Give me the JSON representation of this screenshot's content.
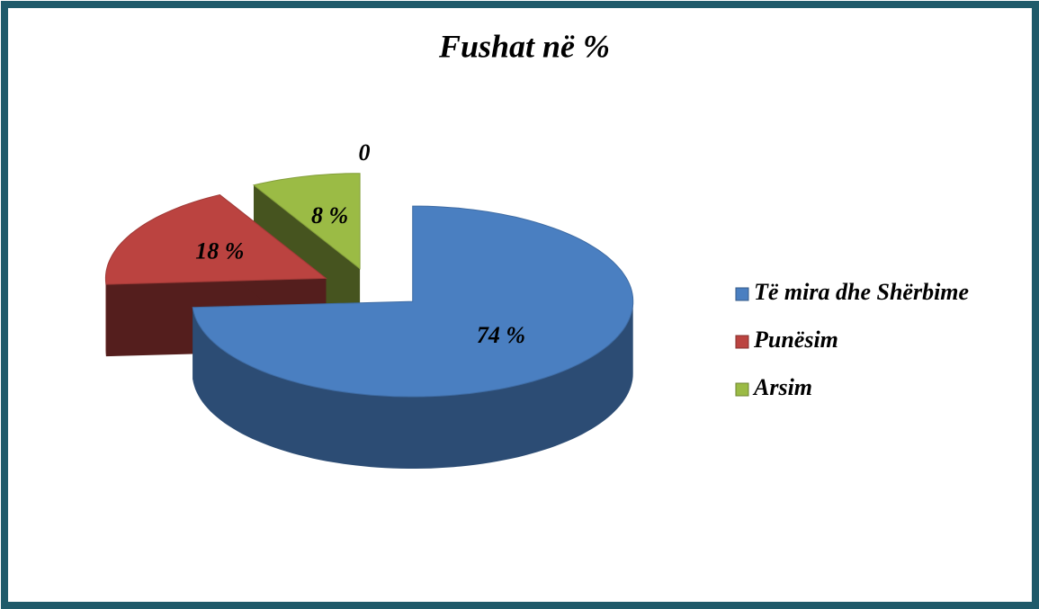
{
  "chart_data": {
    "type": "pie3d",
    "title": "Fushat në %",
    "categories": [
      "Të mira dhe Shërbime",
      "Punësim",
      "Arsim"
    ],
    "values": [
      74,
      18,
      8
    ],
    "value_labels": [
      "74 %",
      "18 %",
      "8 %"
    ],
    "colors": [
      "#4a7fc1",
      "#bb4340",
      "#9bbb45"
    ],
    "annotation": "0",
    "exploded": true,
    "legend": "right"
  }
}
